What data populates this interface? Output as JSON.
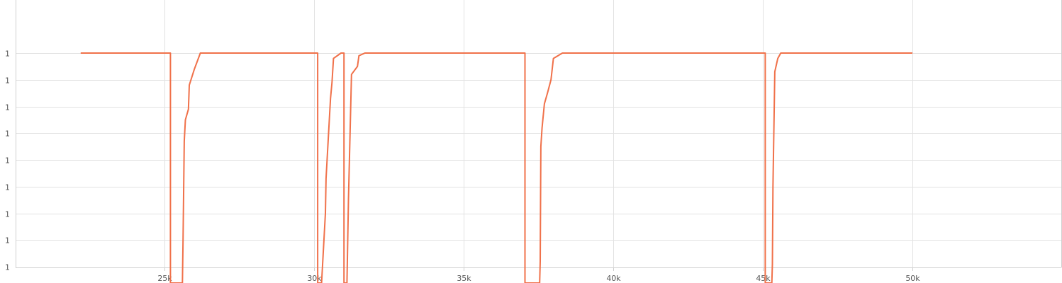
{
  "chart_data": {
    "type": "line",
    "title": "",
    "xlabel": "",
    "ylabel": "",
    "grid": true,
    "xlim": [
      20000,
      55000
    ],
    "ylim": [
      -2,
      8
    ],
    "x_ticks": [
      25000,
      30000,
      35000,
      40000,
      45000,
      50000
    ],
    "x_tick_labels": [
      "25k",
      "30k",
      "35k",
      "40k",
      "45k",
      "50k"
    ],
    "y_ticks": [
      0,
      1,
      2,
      3,
      4,
      5,
      6,
      7,
      8
    ],
    "y_tick_labels": [
      "1",
      "1",
      "1",
      "1",
      "1",
      "1",
      "1",
      "1",
      "1"
    ],
    "series": [
      {
        "color": "#f0714a",
        "x": [
          22200,
          25150,
          25200,
          25200,
          25600,
          25620,
          25660,
          25700,
          25800,
          25830,
          26000,
          26200,
          30080,
          30120,
          30120,
          30250,
          30380,
          30400,
          30550,
          30600,
          30650,
          30900,
          31000,
          31000,
          31100,
          31150,
          31250,
          31450,
          31500,
          31700,
          32000,
          37020,
          37050,
          37050,
          37540,
          37560,
          37580,
          37620,
          37700,
          37800,
          37920,
          38000,
          38300,
          45050,
          45080,
          45080,
          45300,
          45320,
          45340,
          45400,
          45500,
          45600,
          45800,
          50000
        ],
        "y": [
          8,
          8,
          8,
          -2,
          -2,
          1,
          4.7,
          5.5,
          5.9,
          6.8,
          7.4,
          8,
          8,
          8,
          -2,
          -2,
          2.0,
          3.3,
          6.3,
          6.9,
          7.8,
          8,
          8,
          -2,
          -2,
          2.5,
          7.2,
          7.5,
          7.9,
          8,
          8,
          8,
          8,
          -2,
          -2,
          0.2,
          4.5,
          5.2,
          6.1,
          6.5,
          7.0,
          7.8,
          8,
          8,
          8,
          -2,
          -2,
          0.1,
          3.0,
          7.3,
          7.8,
          8,
          8,
          8
        ]
      }
    ]
  }
}
